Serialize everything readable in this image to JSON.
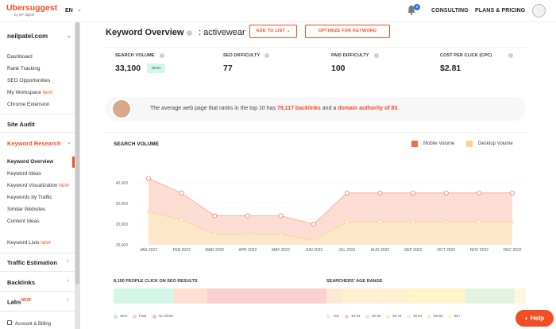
{
  "topbar": {
    "logo": "Ubersuggest",
    "logo_sub": "by NP digital",
    "lang": "EN",
    "bell_badge": "0",
    "nav": [
      "CONSULTING",
      "PLANS & PRICING"
    ]
  },
  "sidebar": {
    "site": "neilpatel.com",
    "items": [
      "Dashboard",
      "Rank Tracking",
      "SEO Opportunities",
      "My Workspace",
      "Chrome Extension"
    ],
    "new": "NEW!",
    "sections": {
      "site_audit": "Site Audit",
      "keyword_research": "Keyword Research",
      "traffic": "Traffic Estimation",
      "backlinks": "Backlinks",
      "labs": "Labs"
    },
    "kr_items": [
      "Keyword Overview",
      "Keyword Ideas",
      "Keyword Visualization",
      "Keywords by Traffic",
      "Similar Websites",
      "Content Ideas"
    ],
    "keyword_lists": "Keyword Lists",
    "account": "Account & Billing"
  },
  "header": {
    "title": "Keyword Overview",
    "separator": ":",
    "keyword": "activewear",
    "add_to_list": "ADD TO LIST",
    "optimize": "OPTIMIZE FOR KEYWORD"
  },
  "metrics": [
    {
      "label": "SEARCH VOLUME",
      "value": "33,100",
      "badge": "HIGH"
    },
    {
      "label": "SEO DIFFICULTY",
      "value": "77"
    },
    {
      "label": "PAID DIFFICULTY",
      "value": "100"
    },
    {
      "label": "COST PER CLICK (CPC)",
      "value": "$2.81"
    }
  ],
  "banner": {
    "prefix": "The average web page that ranks in the top 10 has ",
    "backlinks": "79,117 backlinks",
    "middle": " and a ",
    "authority": "domain authority of 83",
    "suffix": "."
  },
  "chart_data": {
    "type": "area",
    "title": "SEARCH VOLUME",
    "categories": [
      "JAN 2022",
      "FEB 2022",
      "MAR 2022",
      "APR 2022",
      "MAY 2022",
      "JUN 2022",
      "JUL 2022",
      "AUG 2022",
      "SEP 2022",
      "OCT 2022",
      "NOV 2022",
      "DEC 2022"
    ],
    "y_ticks": [
      "40,000",
      "30,000",
      "20,000",
      "10,000"
    ],
    "ylim": [
      10000,
      43000
    ],
    "series": [
      {
        "name": "Mobile Volume",
        "color": "#f08a6f",
        "values": [
          42000,
          35000,
          24000,
          24000,
          24000,
          20000,
          35000,
          35000,
          35000,
          35000,
          35000,
          35000
        ]
      },
      {
        "name": "Desktop Volume",
        "color": "#fbd48a",
        "values": [
          26000,
          22000,
          15000,
          15000,
          15000,
          12000,
          21000,
          21000,
          21000,
          21000,
          21000,
          21000
        ]
      }
    ]
  },
  "lower": {
    "seo_title": "8,190 PEOPLE CLICK ON SEO RESULTS",
    "age_title": "SEARCHERS' AGE RANGE",
    "seo_legend": [
      "SEO",
      "Paid",
      "No clicks"
    ],
    "age_legend": [
      "<18",
      "18-24",
      "25-34",
      "35-44",
      "45-54",
      "55-64",
      "65+"
    ]
  },
  "help": "Help"
}
